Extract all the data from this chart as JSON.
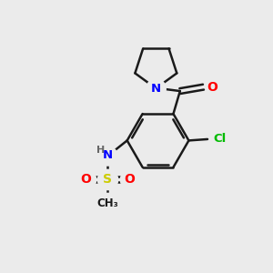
{
  "background_color": "#ebebeb",
  "bond_color": "#1a1a1a",
  "atom_colors": {
    "N": "#0000ff",
    "O": "#ff0000",
    "Cl": "#00bb00",
    "S": "#cccc00",
    "H": "#666666",
    "C": "#1a1a1a"
  },
  "figsize": [
    3.0,
    3.0
  ],
  "dpi": 100
}
